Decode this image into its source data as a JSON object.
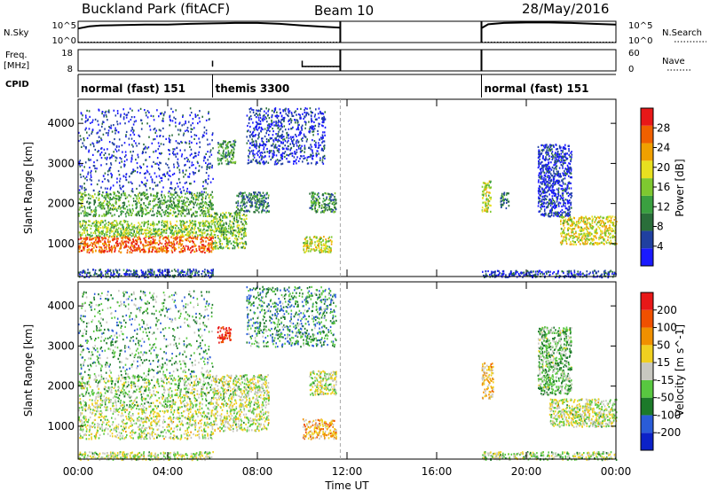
{
  "header": {
    "site": "Buckland Park (fitACF)",
    "beam": "Beam 10",
    "date": "28/May/2016"
  },
  "top_panels": {
    "nsky_label": "N.Sky",
    "nsearch_label": "N.Search",
    "count_axis_ticks": [
      "10^5",
      "10^0"
    ],
    "freq_label": "Freq.",
    "freq_unit": "[MHz]",
    "freq_ticks": [
      "18",
      "8"
    ],
    "nave_label": "Nave",
    "nave_ticks": [
      "60",
      "0"
    ],
    "cpid_label": "CPID",
    "cpid_segments": [
      {
        "start": 0,
        "end": 6,
        "label": "normal (fast) 151"
      },
      {
        "start": 6,
        "end": 11.7,
        "label": "themis 3300"
      },
      {
        "start": 18,
        "end": 24,
        "label": "normal (fast) 151"
      }
    ],
    "nsky_trace": [
      [
        0,
        3.3
      ],
      [
        0.5,
        3.8
      ],
      [
        1,
        4.0
      ],
      [
        2,
        4.1
      ],
      [
        3,
        4.2
      ],
      [
        4,
        4.2
      ],
      [
        5,
        4.4
      ],
      [
        6,
        4.5
      ],
      [
        7,
        4.6
      ],
      [
        8,
        4.6
      ],
      [
        9,
        4.4
      ],
      [
        10,
        4.0
      ],
      [
        11,
        3.7
      ],
      [
        11.7,
        3.5
      ],
      [
        18,
        3.4
      ],
      [
        18.3,
        4.3
      ],
      [
        19,
        4.6
      ],
      [
        20,
        4.7
      ],
      [
        21,
        4.7
      ],
      [
        22,
        4.6
      ],
      [
        23,
        4.4
      ],
      [
        24,
        4.2
      ]
    ],
    "freq_trace": [
      [
        0,
        10.1
      ],
      [
        6,
        10.1
      ],
      [
        6,
        12.8
      ],
      [
        10,
        12.8
      ],
      [
        10,
        10.1
      ],
      [
        11.7,
        10.1
      ],
      [
        18,
        10.1
      ],
      [
        24,
        10.1
      ]
    ],
    "nave_trace": [
      [
        0,
        12
      ],
      [
        6,
        12
      ],
      [
        6,
        22
      ],
      [
        10,
        22
      ],
      [
        10,
        12
      ],
      [
        11.7,
        12
      ],
      [
        18,
        12
      ],
      [
        24,
        12
      ]
    ]
  },
  "chart_data": [
    {
      "type": "heatmap",
      "title": "",
      "xlabel": "",
      "ylabel": "Slant Range [km]",
      "xlim": [
        0,
        24
      ],
      "ylim": [
        180,
        4600
      ],
      "yticks": [
        1000,
        2000,
        3000,
        4000
      ],
      "colorbar": {
        "label": "Power [dB]",
        "range": [
          0,
          32
        ],
        "ticks": [
          "28",
          "24",
          "20",
          "16",
          "12",
          "8",
          "4"
        ]
      },
      "regions": [
        {
          "t0": 0,
          "t1": 6,
          "r0": 180,
          "r1": 380,
          "level": 0.18
        },
        {
          "t0": 0,
          "t1": 6,
          "r0": 800,
          "r1": 1200,
          "level": 0.85
        },
        {
          "t0": 0,
          "t1": 6,
          "r0": 1200,
          "r1": 1600,
          "level": 0.5
        },
        {
          "t0": 0,
          "t1": 6,
          "r0": 1700,
          "r1": 2300,
          "level": 0.4
        },
        {
          "t0": 0,
          "t1": 6,
          "r0": 2300,
          "r1": 4400,
          "level": 0.12
        },
        {
          "t0": 6,
          "t1": 7.5,
          "r0": 900,
          "r1": 1800,
          "level": 0.45
        },
        {
          "t0": 6.2,
          "t1": 7,
          "r0": 3000,
          "r1": 3600,
          "level": 0.35
        },
        {
          "t0": 7,
          "t1": 8.5,
          "r0": 1800,
          "r1": 2300,
          "level": 0.3
        },
        {
          "t0": 7.5,
          "t1": 11,
          "r0": 3000,
          "r1": 4400,
          "level": 0.12
        },
        {
          "t0": 10,
          "t1": 11.3,
          "r0": 800,
          "r1": 1200,
          "level": 0.6
        },
        {
          "t0": 10.3,
          "t1": 11.5,
          "r0": 1800,
          "r1": 2300,
          "level": 0.35
        },
        {
          "t0": 18,
          "t1": 24,
          "r0": 180,
          "r1": 350,
          "level": 0.15
        },
        {
          "t0": 18,
          "t1": 18.4,
          "r0": 1800,
          "r1": 2600,
          "level": 0.55
        },
        {
          "t0": 18.8,
          "t1": 19.2,
          "r0": 1900,
          "r1": 2300,
          "level": 0.3
        },
        {
          "t0": 21.5,
          "t1": 24,
          "r0": 1000,
          "r1": 1700,
          "level": 0.6
        },
        {
          "t0": 20.5,
          "t1": 22,
          "r0": 1700,
          "r1": 3500,
          "level": 0.1
        }
      ]
    },
    {
      "type": "heatmap",
      "title": "",
      "xlabel": "Time UT",
      "ylabel": "Slant Range [km]",
      "xlim": [
        0,
        24
      ],
      "ylim": [
        180,
        4600
      ],
      "yticks": [
        1000,
        2000,
        3000,
        4000
      ],
      "xticks": [
        "00:00",
        "04:00",
        "08:00",
        "12:00",
        "16:00",
        "20:00",
        "00:00"
      ],
      "colorbar": {
        "label": "Velocity [m s^-1]",
        "range": [
          -250,
          250
        ],
        "ticks": [
          "200",
          "100",
          "50",
          "15",
          "-15",
          "-50",
          "-100",
          "-200"
        ]
      },
      "regions": [
        {
          "t0": 0,
          "t1": 6,
          "r0": 180,
          "r1": 380,
          "level": 0.5
        },
        {
          "t0": 0,
          "t1": 6,
          "r0": 700,
          "r1": 1500,
          "level": 0.5
        },
        {
          "t0": 0,
          "t1": 6,
          "r0": 1500,
          "r1": 2300,
          "level": 0.45
        },
        {
          "t0": 0,
          "t1": 6,
          "r0": 2300,
          "r1": 4400,
          "level": 0.35
        },
        {
          "t0": 6,
          "t1": 8.5,
          "r0": 900,
          "r1": 2300,
          "level": 0.5
        },
        {
          "t0": 6.2,
          "t1": 6.8,
          "r0": 3100,
          "r1": 3500,
          "level": 0.95
        },
        {
          "t0": 7.5,
          "t1": 11.5,
          "r0": 3000,
          "r1": 4500,
          "level": 0.3
        },
        {
          "t0": 10,
          "t1": 11.5,
          "r0": 700,
          "r1": 1200,
          "level": 0.65
        },
        {
          "t0": 10.3,
          "t1": 11.5,
          "r0": 1800,
          "r1": 2400,
          "level": 0.5
        },
        {
          "t0": 18,
          "t1": 18.5,
          "r0": 1700,
          "r1": 2600,
          "level": 0.62
        },
        {
          "t0": 18,
          "t1": 24,
          "r0": 180,
          "r1": 380,
          "level": 0.45
        },
        {
          "t0": 21,
          "t1": 24,
          "r0": 1000,
          "r1": 1700,
          "level": 0.5
        },
        {
          "t0": 20.5,
          "t1": 22,
          "r0": 1800,
          "r1": 3500,
          "level": 0.4
        }
      ]
    }
  ],
  "colors": {
    "power_scale": [
      "#1a1aff",
      "#2040a0",
      "#2a6e3a",
      "#3aa040",
      "#7ec830",
      "#e8e020",
      "#f0a000",
      "#f06000",
      "#e81818"
    ],
    "velocity_scale": [
      "#0c22c8",
      "#2a5cd8",
      "#1c7a2a",
      "#58c840",
      "#c8c8c0",
      "#f0d020",
      "#f09000",
      "#f05000",
      "#e81818"
    ]
  }
}
